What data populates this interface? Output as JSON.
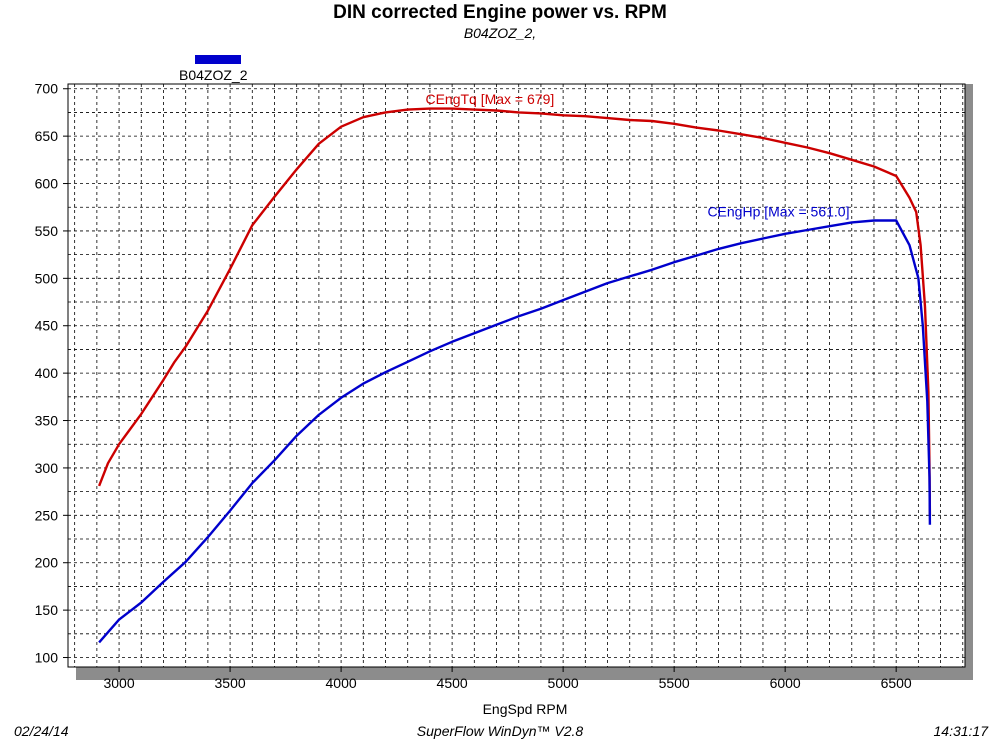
{
  "chart_data": {
    "type": "line",
    "title": "DIN corrected Engine power vs. RPM",
    "subtitle": "B04ZOZ_2,",
    "xlabel": "EngSpd  RPM",
    "ylabel": "",
    "xlim": [
      2770,
      6810
    ],
    "ylim": [
      90,
      705
    ],
    "xticks": [
      3000,
      3500,
      4000,
      4500,
      5000,
      5500,
      6000,
      6500
    ],
    "yticks": [
      100,
      150,
      200,
      250,
      300,
      350,
      400,
      450,
      500,
      550,
      600,
      650,
      700
    ],
    "grid": true,
    "legend": {
      "placement": "top-left",
      "label": "B04ZOZ_2",
      "color": "#0000cc"
    },
    "series": [
      {
        "name": "CEngTq",
        "annotation": "CEngTq [Max = 679]",
        "color": "#cc0000",
        "x": [
          2910,
          2950,
          3000,
          3100,
          3150,
          3200,
          3250,
          3300,
          3400,
          3500,
          3600,
          3700,
          3800,
          3900,
          4000,
          4100,
          4200,
          4300,
          4400,
          4500,
          4600,
          4700,
          4800,
          4900,
          5000,
          5100,
          5200,
          5300,
          5400,
          5500,
          5600,
          5700,
          5800,
          5900,
          6000,
          6100,
          6200,
          6300,
          6400,
          6500,
          6560,
          6590,
          6610,
          6630,
          6645,
          6650,
          6652
        ],
        "y": [
          281,
          305,
          325,
          357,
          375,
          393,
          412,
          428,
          466,
          510,
          556,
          586,
          615,
          642,
          660,
          670,
          675,
          678,
          679,
          679,
          678,
          677,
          675,
          674,
          672,
          671,
          669,
          667,
          666,
          663,
          659,
          656,
          652,
          648,
          643,
          638,
          632,
          625,
          618,
          608,
          585,
          570,
          535,
          470,
          380,
          300,
          250
        ]
      },
      {
        "name": "CEngHp",
        "annotation": "CEngHp [Max = 561.0]",
        "color": "#0000cc",
        "x": [
          2910,
          3000,
          3100,
          3200,
          3300,
          3400,
          3500,
          3600,
          3700,
          3800,
          3900,
          4000,
          4100,
          4200,
          4300,
          4400,
          4500,
          4600,
          4700,
          4800,
          4900,
          5000,
          5100,
          5200,
          5300,
          5400,
          5500,
          5600,
          5700,
          5800,
          5900,
          6000,
          6100,
          6200,
          6300,
          6400,
          6500,
          6560,
          6600,
          6620,
          6640,
          6650,
          6652
        ],
        "y": [
          116,
          140,
          158,
          180,
          201,
          227,
          255,
          284,
          308,
          334,
          356,
          374,
          389,
          401,
          412,
          423,
          433,
          442,
          451,
          460,
          468,
          477,
          486,
          495,
          502,
          509,
          517,
          524,
          531,
          537,
          542,
          547,
          551,
          555,
          559,
          561,
          561,
          535,
          500,
          450,
          370,
          290,
          240
        ]
      }
    ]
  },
  "footer": {
    "date": "02/24/14",
    "software": "SuperFlow WinDyn™ V2.8",
    "time": "14:31:17"
  }
}
